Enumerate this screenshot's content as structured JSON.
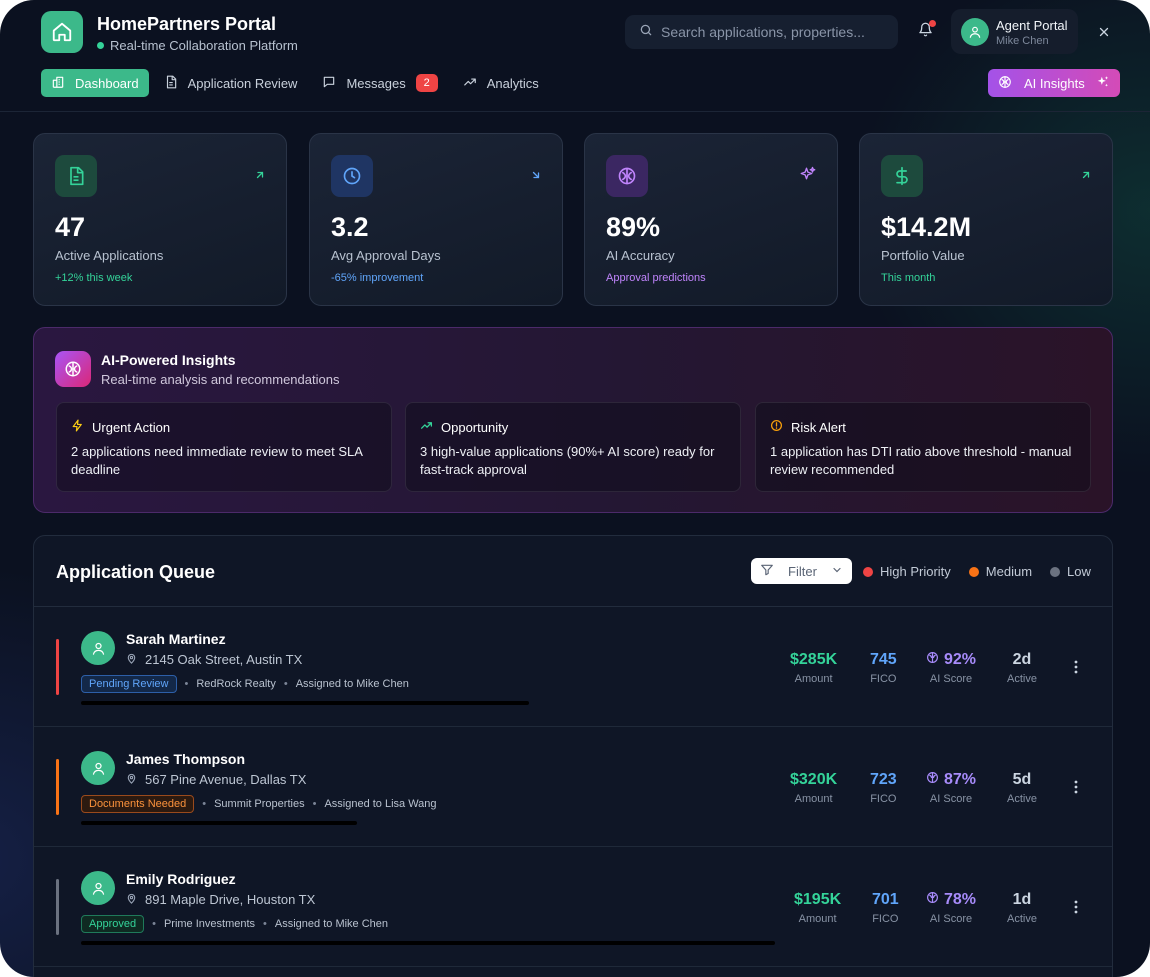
{
  "app": {
    "title": "HomePartners Portal",
    "subtitle": "Real-time Collaboration Platform"
  },
  "search": {
    "placeholder": "Search applications, properties..."
  },
  "agent": {
    "role": "Agent Portal",
    "name": "Mike Chen"
  },
  "nav": {
    "items": [
      {
        "label": "Dashboard",
        "icon": "dashboard-icon",
        "active": true
      },
      {
        "label": "Application Review",
        "icon": "document-icon"
      },
      {
        "label": "Messages",
        "icon": "message-icon",
        "badge": "2"
      },
      {
        "label": "Analytics",
        "icon": "trend-icon"
      }
    ],
    "ai_button": "AI Insights"
  },
  "stats": [
    {
      "value": "47",
      "label": "Active Applications",
      "sub": "+12% this week",
      "sub_color": "#34d399",
      "icon": "document-icon",
      "accent": "#34d399",
      "trend": "arrow-up-right-icon"
    },
    {
      "value": "3.2",
      "label": "Avg Approval Days",
      "sub": "-65% improvement",
      "sub_color": "#60a5fa",
      "icon": "clock-icon",
      "accent": "#60a5fa",
      "trend": "arrow-down-right-icon"
    },
    {
      "value": "89%",
      "label": "AI Accuracy",
      "sub": "Approval predictions",
      "sub_color": "#c084fc",
      "icon": "brain-icon",
      "accent": "#c084fc",
      "trend": "sparkles-icon"
    },
    {
      "value": "$14.2M",
      "label": "Portfolio Value",
      "sub": "This month",
      "sub_color": "#34d399",
      "icon": "dollar-icon",
      "accent": "#34d399",
      "trend": "arrow-up-right-icon"
    }
  ],
  "insights": {
    "title": "AI-Powered Insights",
    "subtitle": "Real-time analysis and recommendations",
    "cards": [
      {
        "title": "Urgent Action",
        "text": "2 applications need immediate review to meet SLA deadline",
        "icon": "lightning-icon",
        "color": "#facc15"
      },
      {
        "title": "Opportunity",
        "text": "3 high-value applications (90%+ AI score) ready for fast-track approval",
        "icon": "trend-up-icon",
        "color": "#34d399"
      },
      {
        "title": "Risk Alert",
        "text": "1 application has DTI ratio above threshold - manual review recommended",
        "icon": "alert-circle-icon",
        "color": "#f59e0b"
      }
    ]
  },
  "queue": {
    "title": "Application Queue",
    "filter_label": "Filter",
    "legend": [
      {
        "label": "High Priority",
        "color": "#ef4444"
      },
      {
        "label": "Medium",
        "color": "#f97316"
      },
      {
        "label": "Low",
        "color": "#6b7280"
      }
    ],
    "metric_labels": {
      "amount": "Amount",
      "fico": "FICO",
      "ai": "AI Score",
      "active": "Active"
    },
    "rows": [
      {
        "name": "Sarah Martinez",
        "address": "2145 Oak Street, Austin TX",
        "status": "Pending Review",
        "status_color": "#60a5fa",
        "company": "RedRock Realty",
        "assigned": "Assigned to Mike Chen",
        "priority_color": "#ef4444",
        "progress": 0.6,
        "amount": "$285K",
        "fico": "745",
        "ai_score": "92%",
        "active": "2d"
      },
      {
        "name": "James Thompson",
        "address": "567 Pine Avenue, Dallas TX",
        "status": "Documents Needed",
        "status_color": "#f97316",
        "company": "Summit Properties",
        "assigned": "Assigned to Lisa Wang",
        "priority_color": "#f97316",
        "progress": 0.37,
        "amount": "$320K",
        "fico": "723",
        "ai_score": "87%",
        "active": "5d"
      },
      {
        "name": "Emily Rodriguez",
        "address": "891 Maple Drive, Houston TX",
        "status": "Approved",
        "status_color": "#34d399",
        "company": "Prime Investments",
        "assigned": "Assigned to Mike Chen",
        "priority_color": "#6b7280",
        "progress": 0.93,
        "amount": "$195K",
        "fico": "701",
        "ai_score": "78%",
        "active": "1d"
      }
    ]
  },
  "colors": {
    "brand": "#3cb98a",
    "amount": "#34d399",
    "fico": "#60a5fa",
    "ai": "#a78bfa"
  }
}
